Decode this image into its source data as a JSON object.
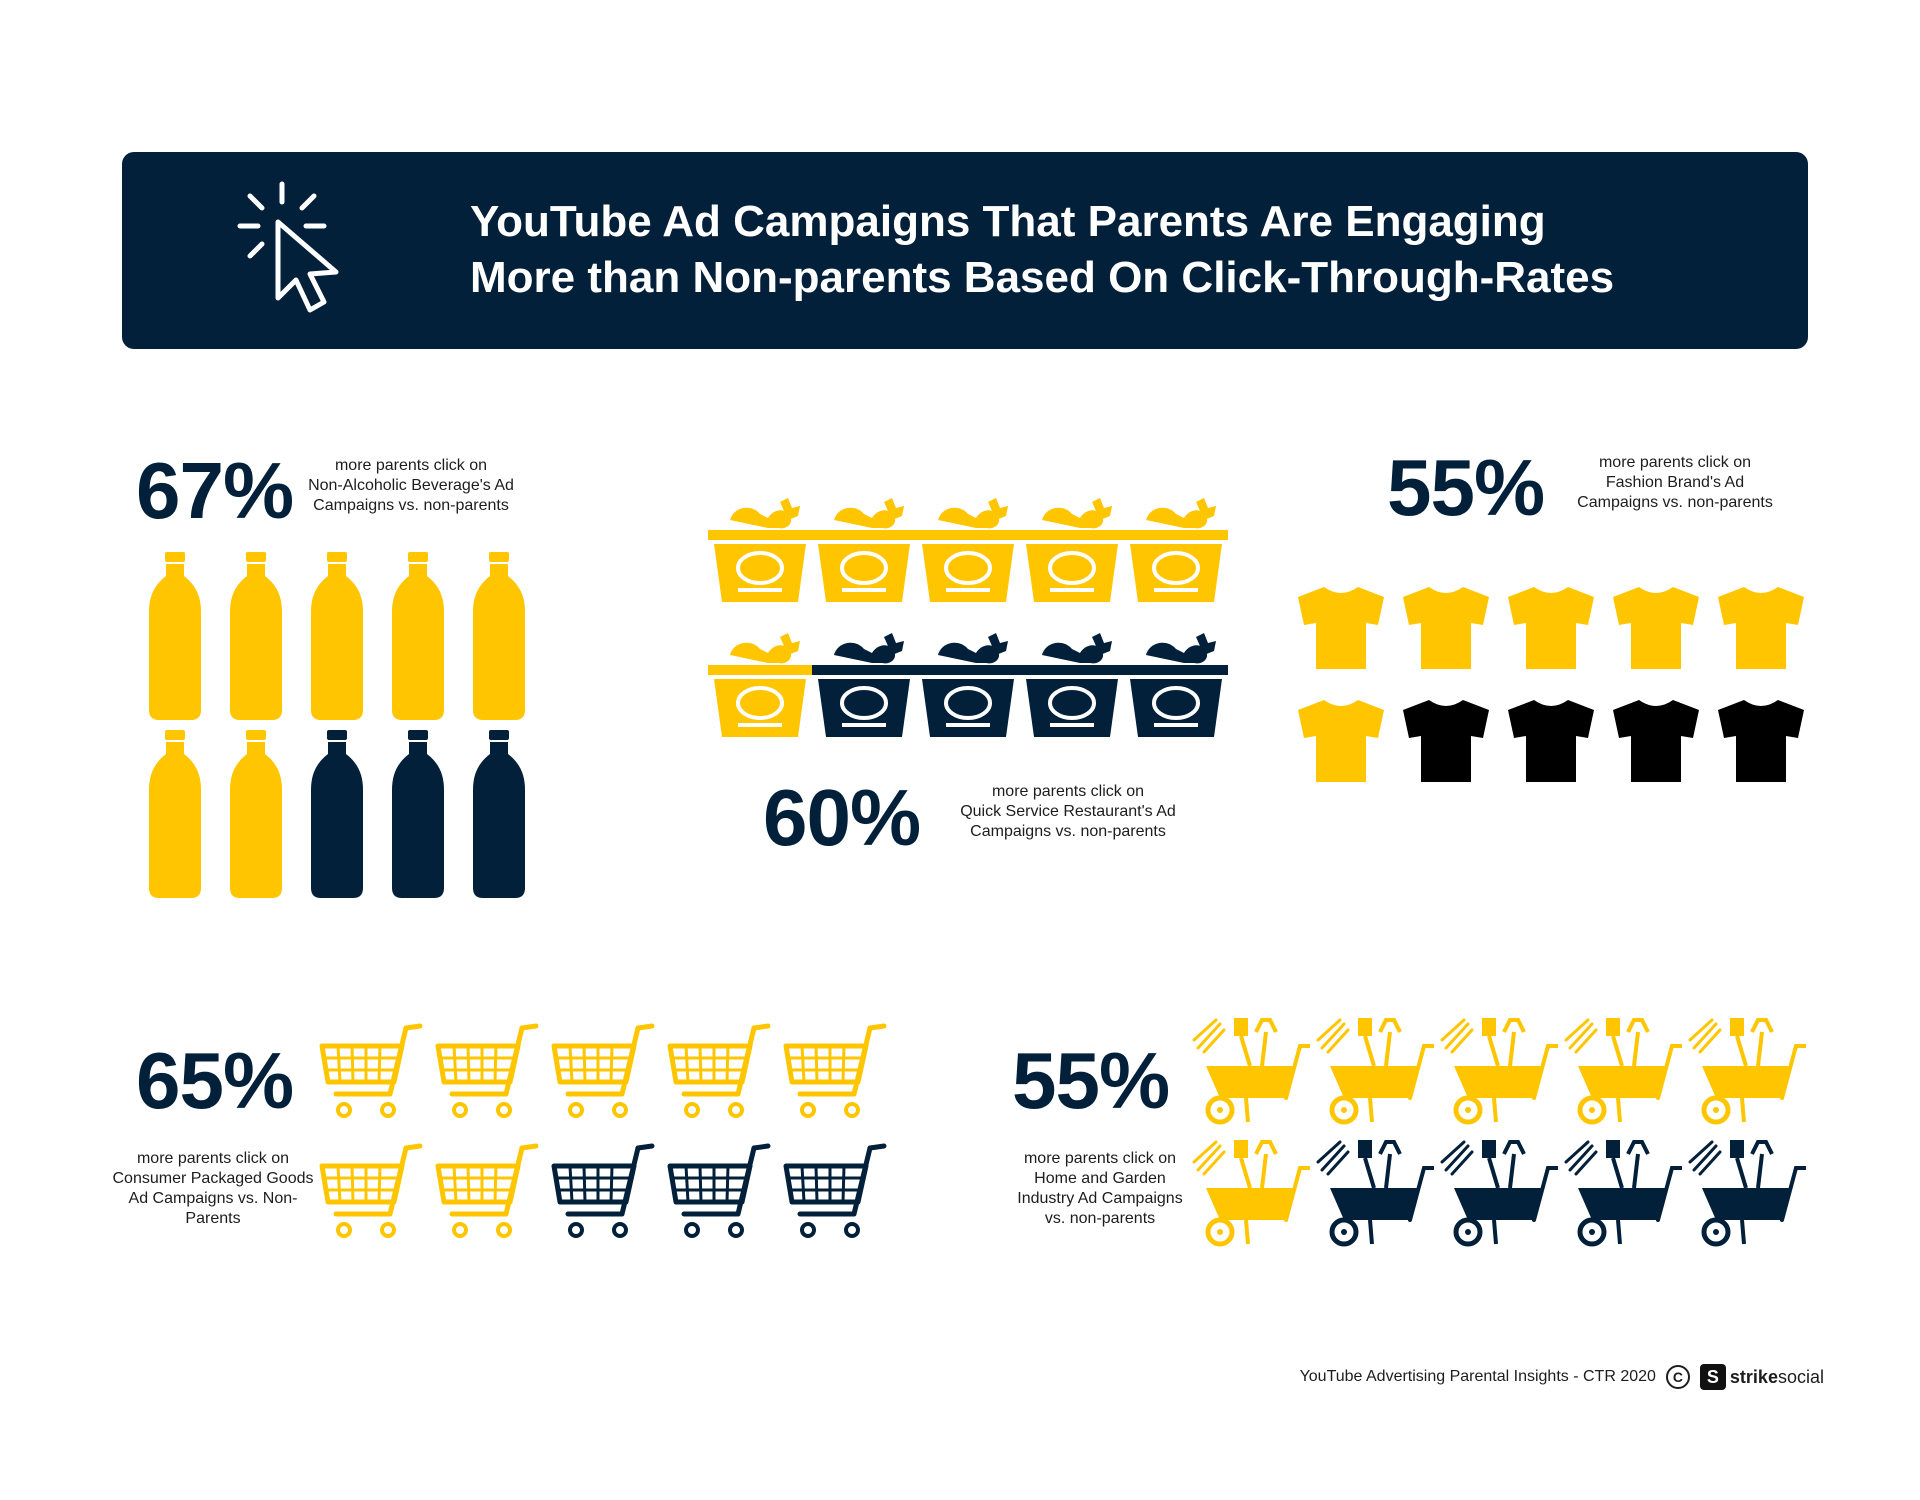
{
  "header": {
    "title_line1": "YouTube Ad Campaigns That Parents Are Engaging",
    "title_line2": "More than Non-parents Based On Click-Through-Rates",
    "icon": "cursor-click-icon"
  },
  "colors": {
    "highlight": "#ffc600",
    "dark": "#02203a",
    "black": "#000000",
    "banner": "#02203a"
  },
  "chart_data": [
    {
      "type": "pictograph",
      "category": "Non-Alcoholic Beverage",
      "icon": "bottle-icon",
      "value_label": "67%",
      "value": 67,
      "icons_total": 10,
      "icons_highlighted": 7,
      "description": [
        "more parents click on",
        "Non-Alcoholic Beverage's Ad",
        "Campaigns vs. non-parents"
      ]
    },
    {
      "type": "pictograph",
      "category": "Quick Service Restaurant",
      "icon": "fast-food-bucket-icon",
      "value_label": "60%",
      "value": 60,
      "icons_total": 10,
      "icons_highlighted": 6,
      "description": [
        "more parents click on",
        "Quick Service Restaurant's Ad",
        "Campaigns vs. non-parents"
      ]
    },
    {
      "type": "pictograph",
      "category": "Fashion Brand",
      "icon": "t-shirt-icon",
      "value_label": "55%",
      "value": 55,
      "icons_total": 10,
      "icons_highlighted": 6,
      "description": [
        "more parents click on",
        "Fashion Brand's Ad",
        "Campaigns vs. non-parents"
      ]
    },
    {
      "type": "pictograph",
      "category": "Consumer Packaged Goods",
      "icon": "shopping-cart-icon",
      "value_label": "65%",
      "value": 65,
      "icons_total": 10,
      "icons_highlighted": 7,
      "description": [
        "more parents click on",
        "Consumer Packaged Goods",
        "Ad Campaigns vs. Non-",
        "Parents"
      ]
    },
    {
      "type": "pictograph",
      "category": "Home and Garden",
      "icon": "wheelbarrow-icon",
      "value_label": "55%",
      "value": 55,
      "icons_total": 10,
      "icons_highlighted": 6,
      "description": [
        "more parents click on",
        "Home and Garden",
        "Industry Ad Campaigns",
        "vs. non-parents"
      ]
    }
  ],
  "footer": {
    "text": "YouTube Advertising Parental Insights - CTR 2020",
    "copyright_symbol": "C",
    "logo_mark": "S",
    "logo_strike": "strike",
    "logo_social": "social"
  }
}
